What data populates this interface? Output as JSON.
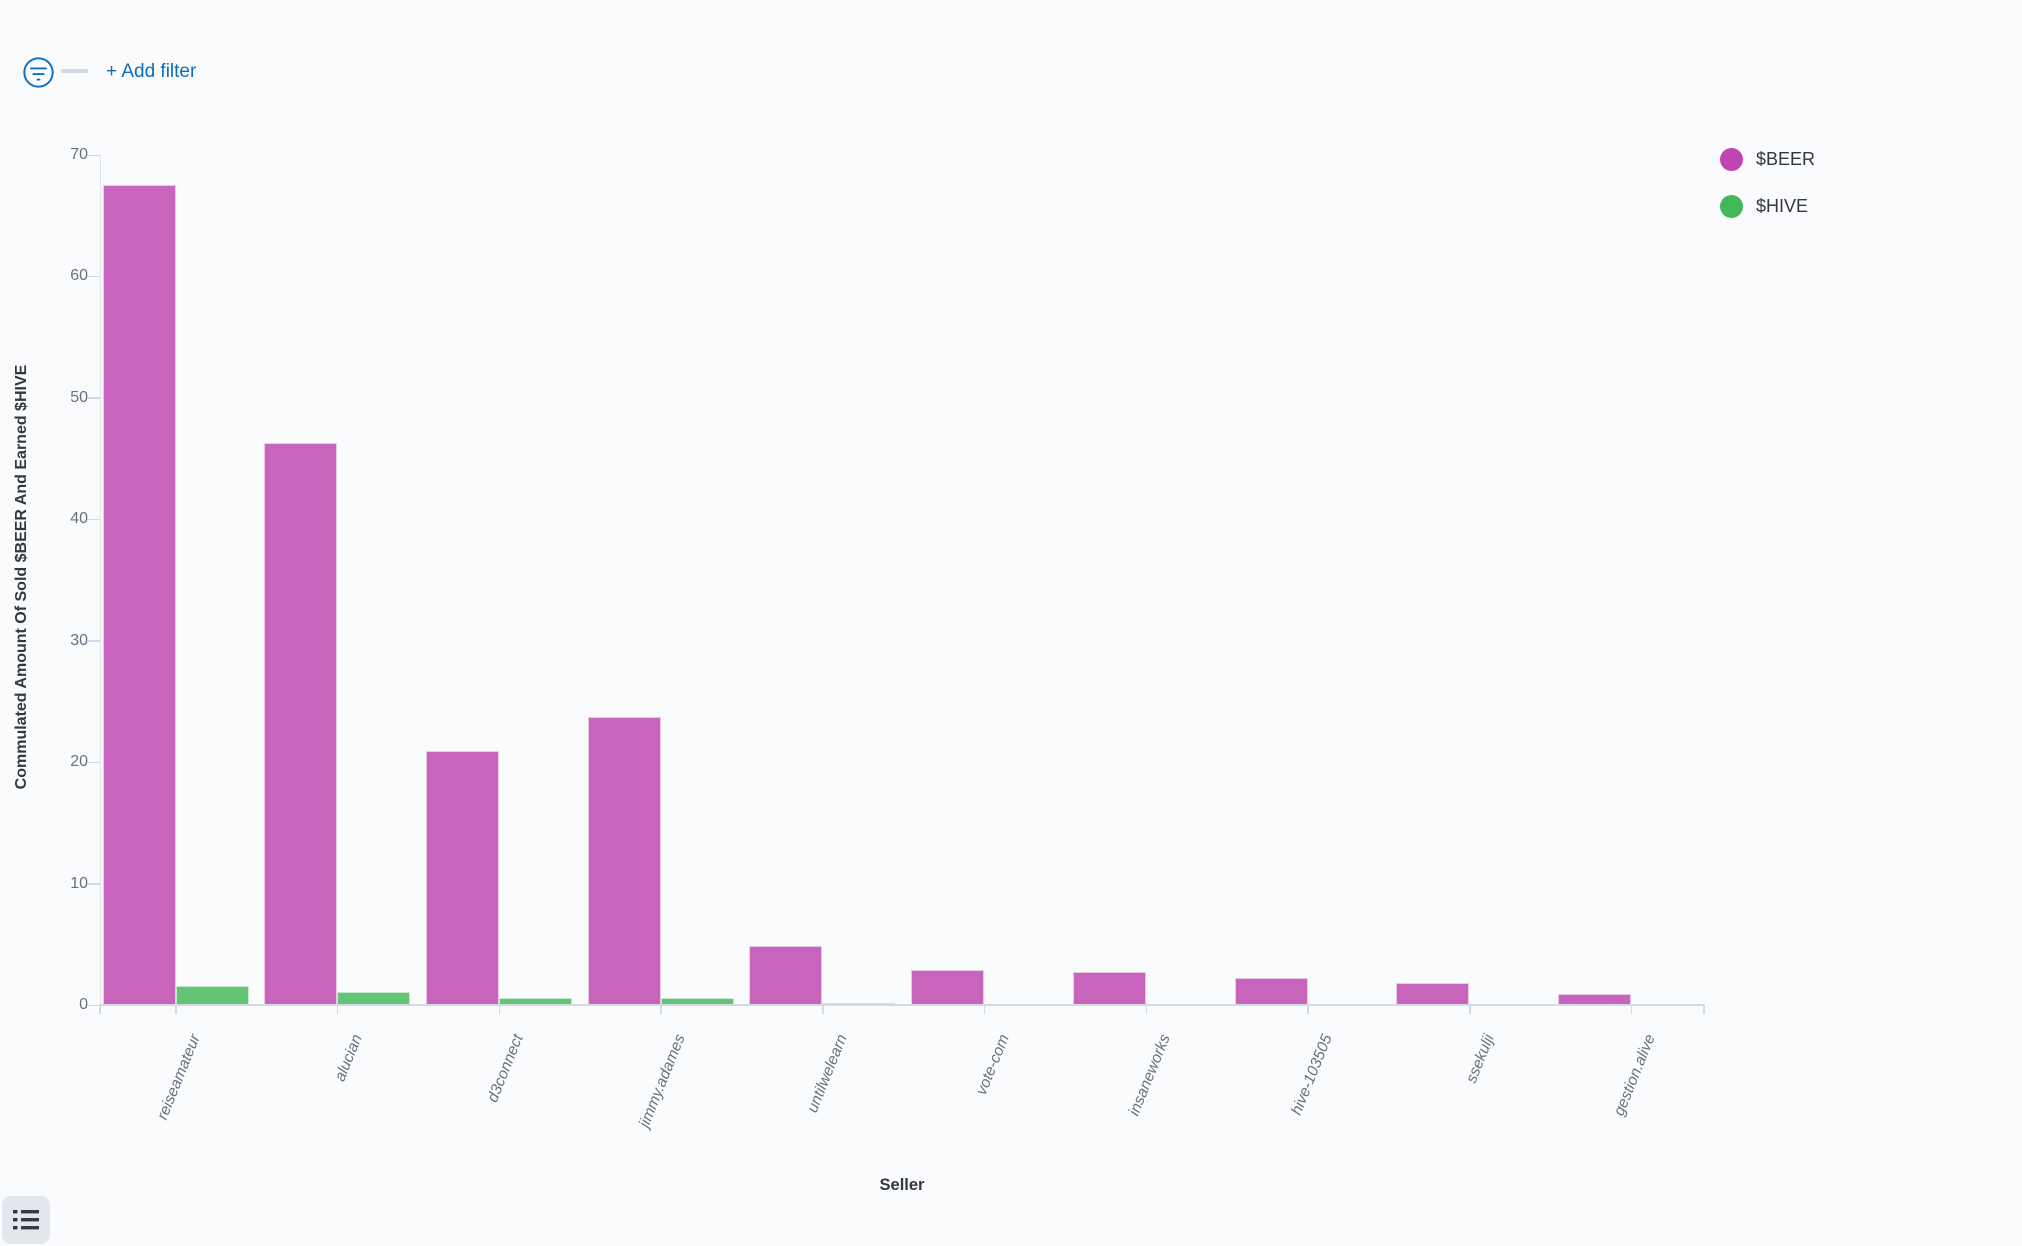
{
  "filter_bar": {
    "add_filter_label": "+ Add filter",
    "accent_color": "#0b6ebe"
  },
  "chart_data": {
    "type": "bar",
    "title": "",
    "xlabel": "Seller",
    "ylabel": "Commulated Amount Of Sold $BEER And Earned $HIVE",
    "ylim": [
      0,
      70
    ],
    "yticks": [
      0,
      10,
      20,
      30,
      40,
      50,
      60,
      70
    ],
    "grid": false,
    "legend_position": "top-right",
    "categories": [
      "reiseamateur",
      "alucian",
      "d3connect",
      "jimmy.adames",
      "untilwelearn",
      "vote-com",
      "insaneworks",
      "hive-103505",
      "ssekulji",
      "gestion.alive"
    ],
    "series": [
      {
        "name": "$BEER",
        "color": "#bf43b0",
        "values": [
          67.5,
          46.3,
          20.9,
          23.7,
          4.9,
          2.9,
          2.7,
          2.2,
          1.8,
          0.9
        ]
      },
      {
        "name": "$HIVE",
        "color": "#41b957",
        "values": [
          1.6,
          1.1,
          0.6,
          0.55,
          0.15,
          0,
          0,
          0,
          0,
          0
        ]
      }
    ]
  },
  "footer": {
    "list_button": "legend-list-button"
  }
}
